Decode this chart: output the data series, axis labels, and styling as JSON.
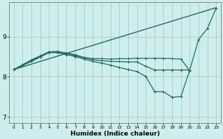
{
  "xlabel": "Humidex (Indice chaleur)",
  "bg_color": "#cceeed",
  "grid_color": "#b0b0b0",
  "line_color": "#1e6b5e",
  "xlim": [
    -0.5,
    23.5
  ],
  "ylim": [
    6.85,
    9.85
  ],
  "yticks": [
    7,
    8,
    9
  ],
  "xticks": [
    0,
    1,
    2,
    3,
    4,
    5,
    6,
    7,
    8,
    9,
    10,
    11,
    12,
    13,
    14,
    15,
    16,
    17,
    18,
    19,
    20,
    21,
    22,
    23
  ],
  "series": [
    {
      "x": [
        0,
        23
      ],
      "y": [
        8.18,
        9.72
      ],
      "marker": null,
      "lw": 1.0
    },
    {
      "x": [
        0,
        1,
        2,
        3,
        4,
        5,
        6,
        7,
        8,
        9,
        10,
        11,
        12,
        13,
        14,
        15,
        16,
        17,
        18,
        19,
        20
      ],
      "y": [
        8.18,
        8.3,
        8.42,
        8.52,
        8.62,
        8.63,
        8.59,
        8.55,
        8.48,
        8.45,
        8.45,
        8.44,
        8.45,
        8.45,
        8.46,
        8.46,
        8.46,
        8.46,
        8.45,
        8.44,
        8.15
      ],
      "marker": "+",
      "lw": 0.9
    },
    {
      "x": [
        0,
        1,
        2,
        3,
        4,
        5,
        6,
        7,
        8,
        9,
        10,
        11,
        12,
        13,
        14,
        15,
        16,
        17,
        18,
        19,
        20
      ],
      "y": [
        8.18,
        8.29,
        8.4,
        8.5,
        8.62,
        8.62,
        8.58,
        8.52,
        8.47,
        8.42,
        8.4,
        8.38,
        8.38,
        8.37,
        8.37,
        8.26,
        8.17,
        8.17,
        8.17,
        8.17,
        8.17
      ],
      "marker": "+",
      "lw": 0.9
    },
    {
      "x": [
        0,
        1,
        2,
        3,
        4,
        5,
        6,
        7,
        8,
        9,
        10,
        11,
        12,
        13,
        14,
        15,
        16,
        17,
        18,
        19,
        20,
        21,
        22,
        23
      ],
      "y": [
        8.18,
        8.28,
        8.38,
        8.49,
        8.6,
        8.6,
        8.55,
        8.5,
        8.44,
        8.38,
        8.34,
        8.29,
        8.23,
        8.18,
        8.13,
        8.01,
        7.63,
        7.63,
        7.49,
        7.51,
        8.17,
        8.93,
        9.2,
        9.71
      ],
      "marker": "+",
      "lw": 0.9
    }
  ]
}
